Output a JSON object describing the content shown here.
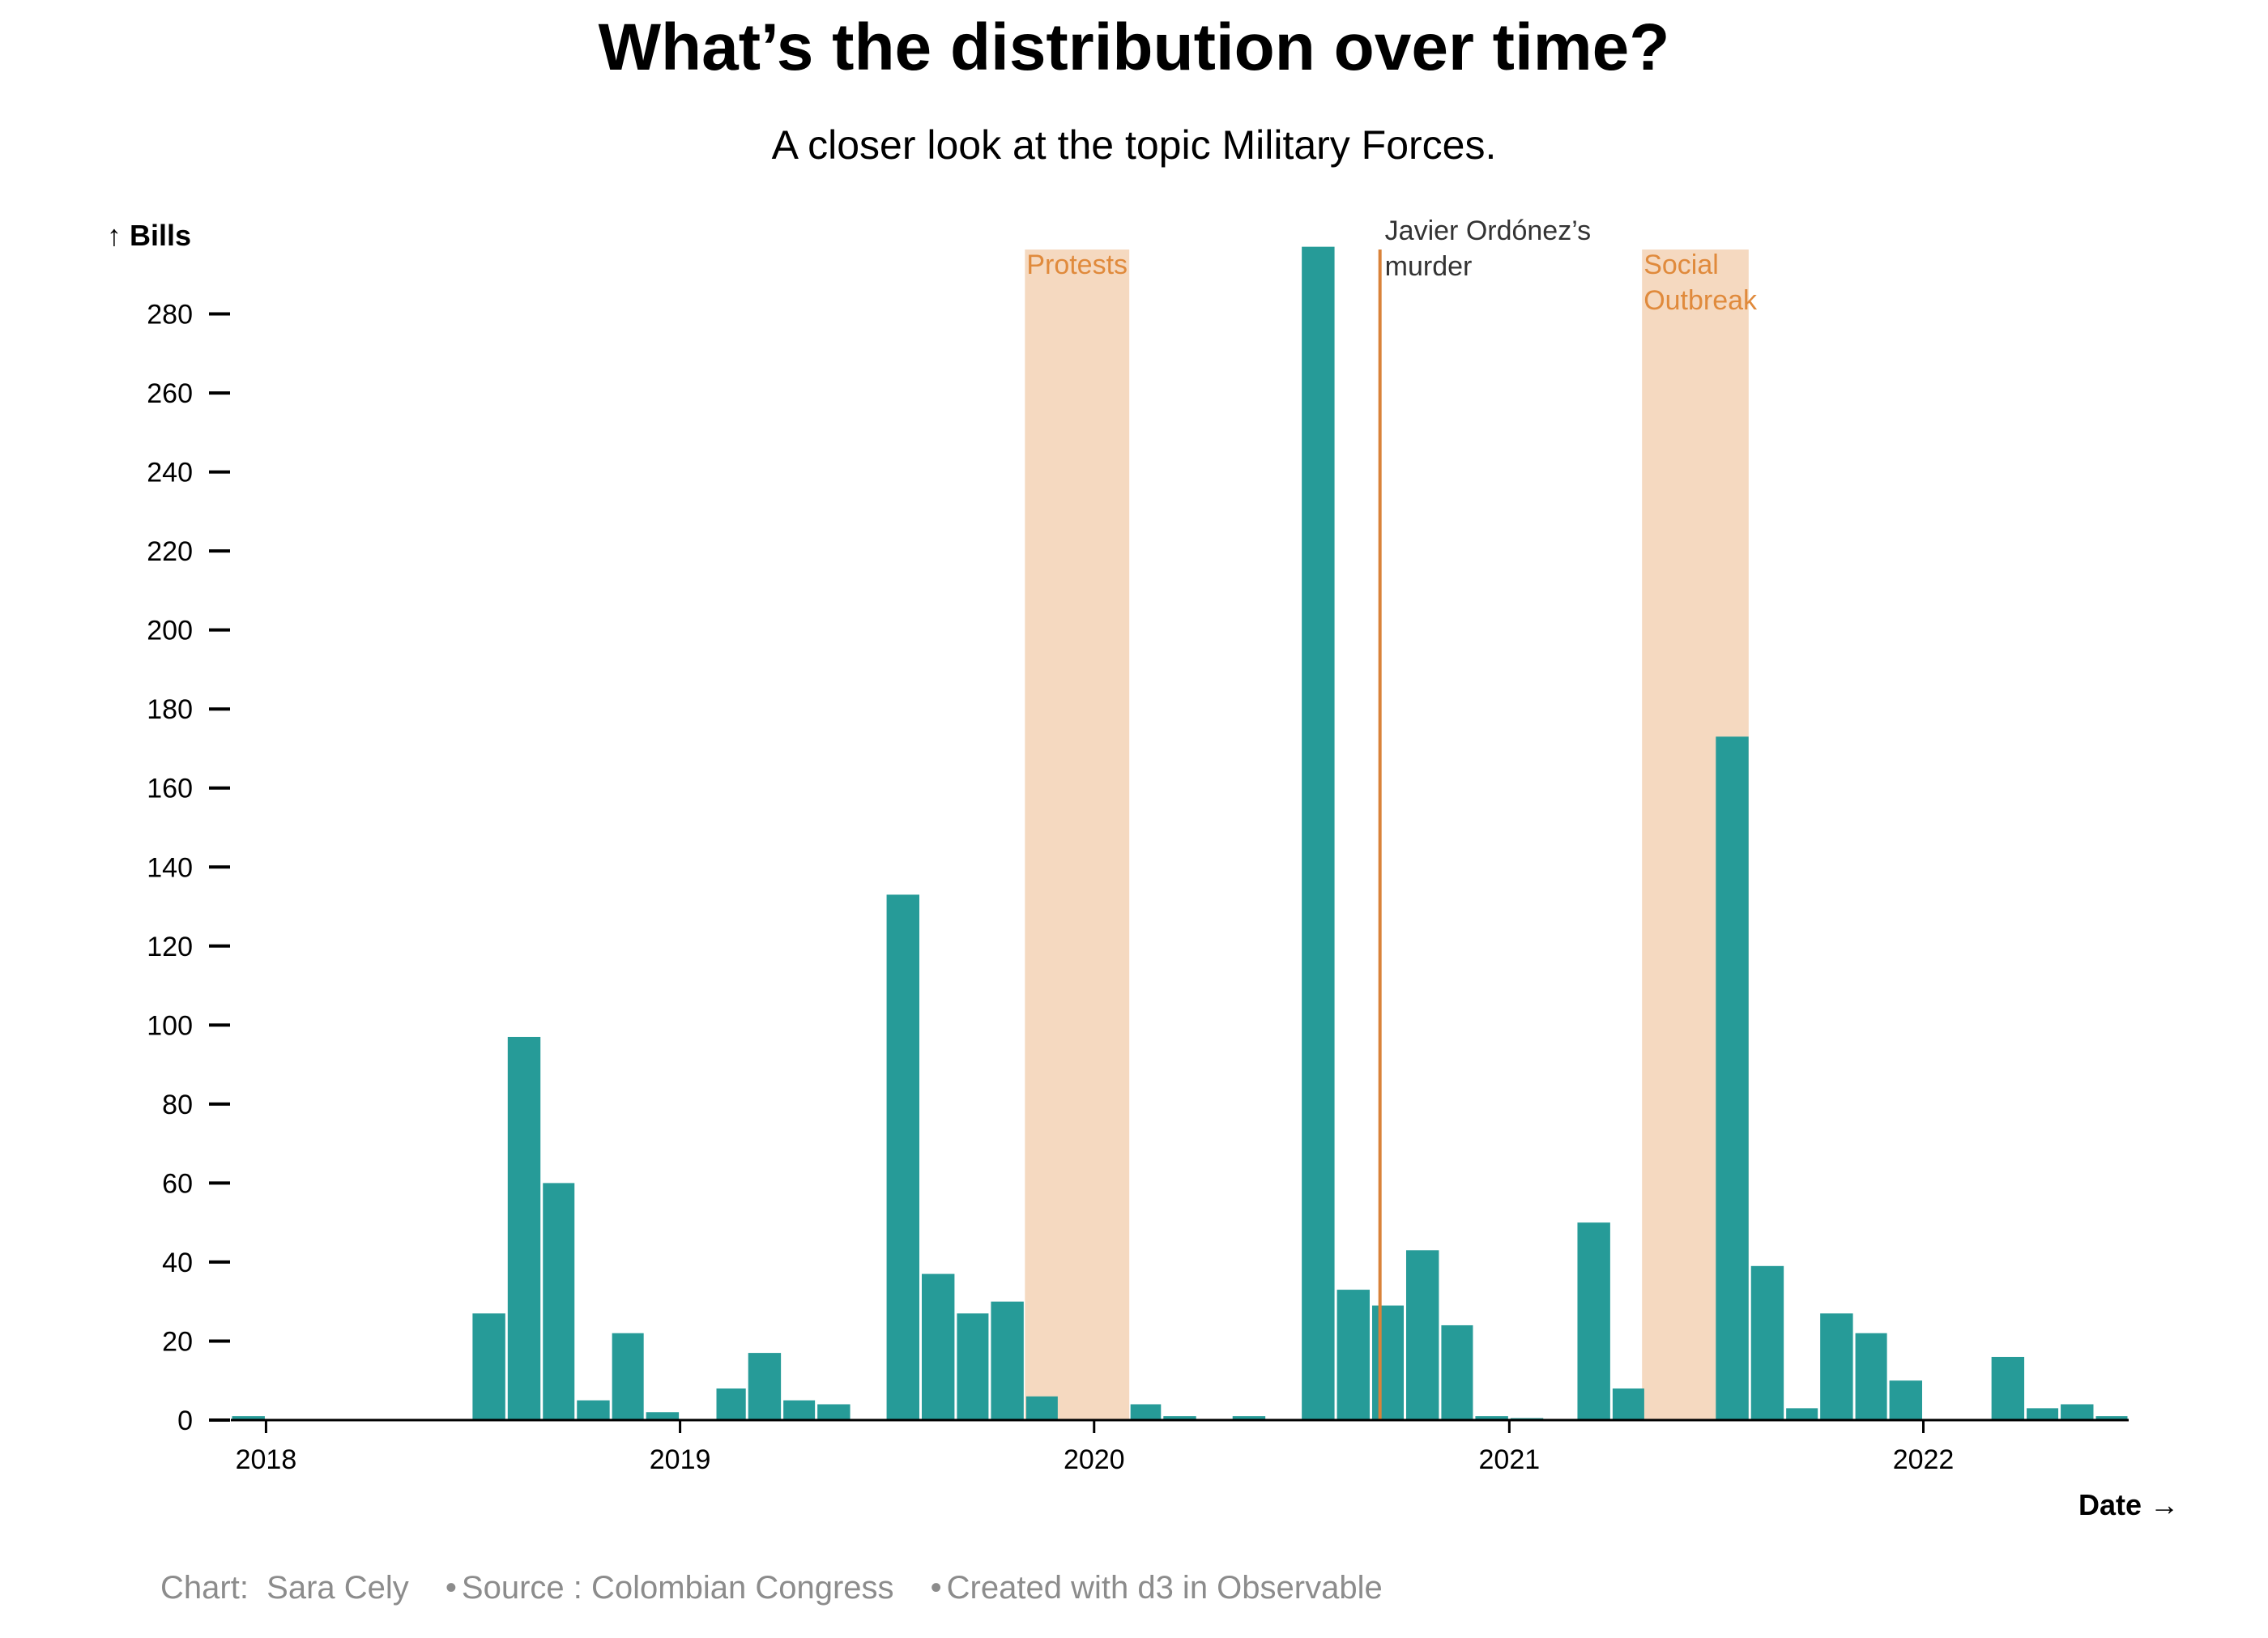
{
  "title": "What’s the distribution over time?",
  "subtitle": "A closer look at the topic Military Forces.",
  "chart_data": {
    "type": "bar",
    "ylabel": "↑ Bills",
    "xlabel": "Date →",
    "ylim": [
      0,
      300
    ],
    "yticks": [
      "0",
      "20",
      "40",
      "60",
      "80",
      "100",
      "120",
      "140",
      "160",
      "180",
      "200",
      "220",
      "240",
      "260",
      "280"
    ],
    "xtick_labels": [
      "2018",
      "2019",
      "2020",
      "2021",
      "2022"
    ],
    "x_domain": [
      "2017-12-01",
      "2022-07-01"
    ],
    "bar_color": "#269b98",
    "bars": [
      {
        "start": "2017-12-01",
        "end": "2018-01-01",
        "value": 1
      },
      {
        "start": "2018-07-01",
        "end": "2018-08-01",
        "value": 27
      },
      {
        "start": "2018-08-01",
        "end": "2018-09-01",
        "value": 97
      },
      {
        "start": "2018-09-01",
        "end": "2018-10-01",
        "value": 60
      },
      {
        "start": "2018-10-01",
        "end": "2018-11-01",
        "value": 5
      },
      {
        "start": "2018-11-01",
        "end": "2018-12-01",
        "value": 22
      },
      {
        "start": "2018-12-01",
        "end": "2019-01-01",
        "value": 2
      },
      {
        "start": "2019-02-01",
        "end": "2019-03-01",
        "value": 8
      },
      {
        "start": "2019-03-01",
        "end": "2019-04-01",
        "value": 17
      },
      {
        "start": "2019-04-01",
        "end": "2019-05-01",
        "value": 5
      },
      {
        "start": "2019-05-01",
        "end": "2019-06-01",
        "value": 4
      },
      {
        "start": "2019-07-01",
        "end": "2019-08-01",
        "value": 133
      },
      {
        "start": "2019-08-01",
        "end": "2019-09-01",
        "value": 37
      },
      {
        "start": "2019-09-01",
        "end": "2019-10-01",
        "value": 27
      },
      {
        "start": "2019-10-01",
        "end": "2019-11-01",
        "value": 30
      },
      {
        "start": "2019-11-01",
        "end": "2019-12-01",
        "value": 6
      },
      {
        "start": "2020-02-01",
        "end": "2020-03-01",
        "value": 4
      },
      {
        "start": "2020-03-01",
        "end": "2020-04-01",
        "value": 1
      },
      {
        "start": "2020-05-01",
        "end": "2020-06-01",
        "value": 1
      },
      {
        "start": "2020-07-01",
        "end": "2020-08-01",
        "value": 297
      },
      {
        "start": "2020-08-01",
        "end": "2020-09-01",
        "value": 33
      },
      {
        "start": "2020-09-01",
        "end": "2020-10-01",
        "value": 29
      },
      {
        "start": "2020-10-01",
        "end": "2020-11-01",
        "value": 43
      },
      {
        "start": "2020-11-01",
        "end": "2020-12-01",
        "value": 24
      },
      {
        "start": "2020-12-01",
        "end": "2021-01-01",
        "value": 1
      },
      {
        "start": "2021-01-01",
        "end": "2021-02-01",
        "value": 0.5
      },
      {
        "start": "2021-03-01",
        "end": "2021-04-01",
        "value": 50
      },
      {
        "start": "2021-04-01",
        "end": "2021-05-01",
        "value": 8
      },
      {
        "start": "2021-07-01",
        "end": "2021-08-01",
        "value": 173
      },
      {
        "start": "2021-08-01",
        "end": "2021-09-01",
        "value": 39
      },
      {
        "start": "2021-09-01",
        "end": "2021-10-01",
        "value": 3
      },
      {
        "start": "2021-10-01",
        "end": "2021-11-01",
        "value": 27
      },
      {
        "start": "2021-11-01",
        "end": "2021-12-01",
        "value": 22
      },
      {
        "start": "2021-12-01",
        "end": "2022-01-01",
        "value": 10
      },
      {
        "start": "2022-03-01",
        "end": "2022-04-01",
        "value": 16
      },
      {
        "start": "2022-04-01",
        "end": "2022-05-01",
        "value": 3
      },
      {
        "start": "2022-05-01",
        "end": "2022-06-01",
        "value": 4
      },
      {
        "start": "2022-06-01",
        "end": "2022-07-01",
        "value": 1
      }
    ],
    "annotations": [
      {
        "kind": "band",
        "label": [
          "Protests"
        ],
        "start": "2019-11-01",
        "end": "2020-02-01",
        "color": "#f5d9c0",
        "label_color": "#e08a3c"
      },
      {
        "kind": "line",
        "label": [
          "Javier Ordónez’s",
          "murder"
        ],
        "date": "2020-09-09",
        "color": "#d9823a",
        "label_color": "#333333"
      },
      {
        "kind": "band",
        "label": [
          "Social",
          "Outbreak"
        ],
        "start": "2021-04-28",
        "end": "2021-07-31",
        "color": "#f5d9c0",
        "label_color": "#e08a3c"
      }
    ]
  },
  "footer": {
    "chart_credit": "Chart:  Sara Cely",
    "source": "Source : Colombian Congress",
    "tool": "Created with d3 in Observable",
    "separator": "•"
  }
}
